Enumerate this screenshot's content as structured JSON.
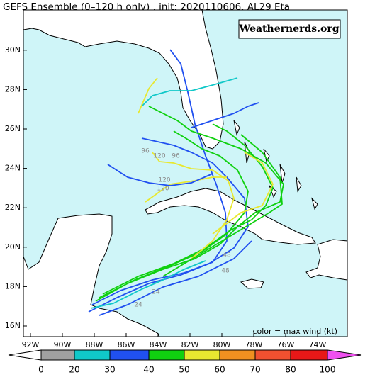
{
  "header": {
    "title": "GEFS Ensemble (0–120 h only) , init: 2020110606, AL29 Eta"
  },
  "watermark": "Weathernerds.org",
  "map": {
    "lat_labels": [
      "16N",
      "18N",
      "20N",
      "22N",
      "24N",
      "26N",
      "28N",
      "30N"
    ],
    "lon_labels": [
      "92W",
      "90W",
      "88W",
      "86W",
      "84W",
      "82W",
      "80W",
      "78W",
      "76W",
      "74W"
    ],
    "hour_labels": [
      "96",
      "120",
      "96",
      "120",
      "120",
      "24",
      "24",
      "48",
      "48"
    ]
  },
  "legend": {
    "caption": "color = max wind (kt)",
    "labels": [
      "0",
      "20",
      "30",
      "40",
      "50",
      "60",
      "70",
      "80",
      "100"
    ],
    "colors": [
      "#ffffff",
      "#a0a0a0",
      "#10c8c8",
      "#2050f0",
      "#10d010",
      "#e8e830",
      "#f09020",
      "#f05030",
      "#e81818",
      "#f050f0"
    ]
  }
}
